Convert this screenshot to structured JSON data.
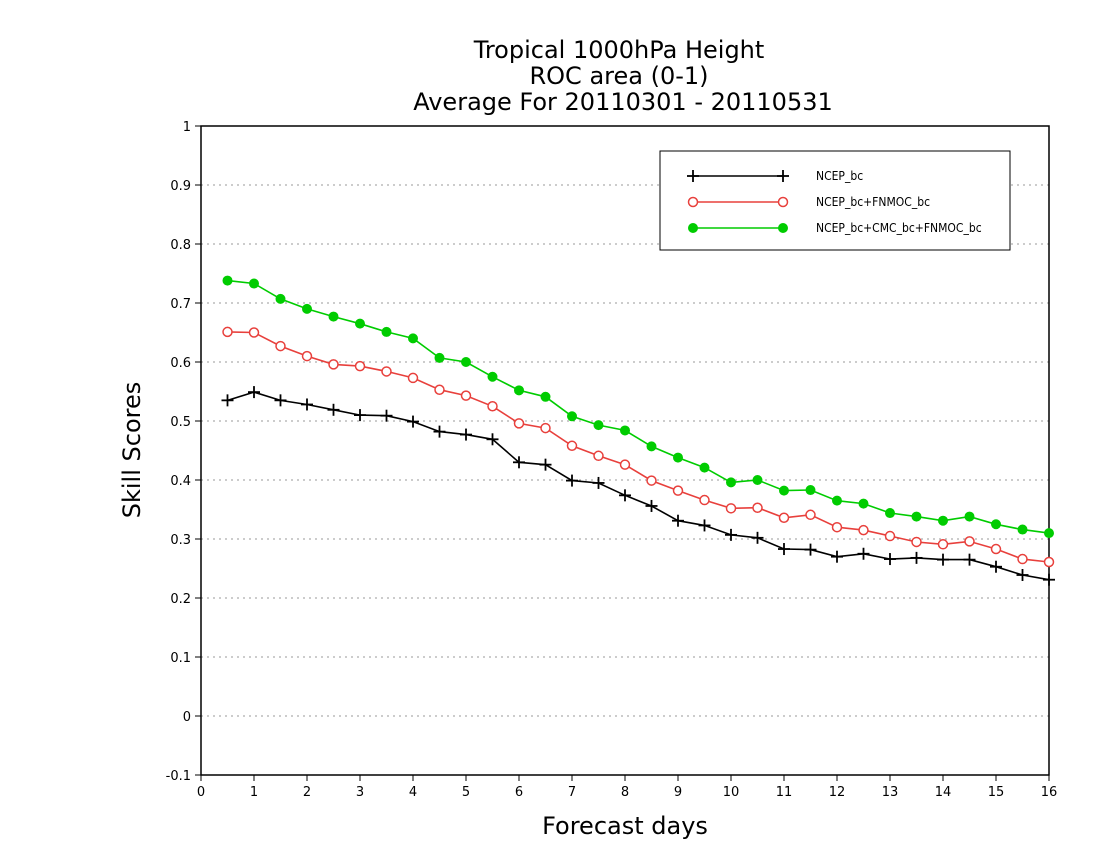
{
  "chart_data": {
    "type": "line",
    "title": [
      "Tropical 1000hPa Height",
      "ROC area (0-1)",
      "Average For 20110301 - 20110531"
    ],
    "xlabel": "Forecast days",
    "ylabel": "Skill Scores",
    "xlim": [
      0,
      16
    ],
    "ylim": [
      -0.1,
      1
    ],
    "xticks": [
      0,
      1,
      2,
      3,
      4,
      5,
      6,
      7,
      8,
      9,
      10,
      11,
      12,
      13,
      14,
      15,
      16
    ],
    "yticks": [
      "-0.1",
      "0",
      "0.1",
      "0.2",
      "0.3",
      "0.4",
      "0.5",
      "0.6",
      "0.7",
      "0.8",
      "0.9",
      "1"
    ],
    "grid": "horizontal dotted",
    "legend_position": "top-right",
    "x": [
      0.5,
      1,
      1.5,
      2,
      2.5,
      3,
      3.5,
      4,
      4.5,
      5,
      5.5,
      6,
      6.5,
      7,
      7.5,
      8,
      8.5,
      9,
      9.5,
      10,
      10.5,
      11,
      11.5,
      12,
      12.5,
      13,
      13.5,
      14,
      14.5,
      15,
      15.5,
      16
    ],
    "series": [
      {
        "name": "NCEP_bc",
        "color": "#000000",
        "marker": "plus",
        "values": [
          0.535,
          0.549,
          0.535,
          0.528,
          0.519,
          0.51,
          0.509,
          0.499,
          0.482,
          0.477,
          0.469,
          0.43,
          0.426,
          0.399,
          0.395,
          0.374,
          0.356,
          0.331,
          0.323,
          0.307,
          0.302,
          0.283,
          0.282,
          0.27,
          0.275,
          0.266,
          0.268,
          0.265,
          0.265,
          0.253,
          0.239,
          0.231
        ]
      },
      {
        "name": "NCEP_bc+FNMOC_bc",
        "color": "#e8403c",
        "marker": "open-circle",
        "values": [
          0.651,
          0.65,
          0.627,
          0.61,
          0.596,
          0.593,
          0.584,
          0.573,
          0.553,
          0.543,
          0.525,
          0.496,
          0.488,
          0.458,
          0.441,
          0.426,
          0.399,
          0.382,
          0.366,
          0.352,
          0.353,
          0.336,
          0.341,
          0.32,
          0.315,
          0.305,
          0.295,
          0.291,
          0.296,
          0.283,
          0.266,
          0.261
        ]
      },
      {
        "name": "NCEP_bc+CMC_bc+FNMOC_bc",
        "color": "#00cc00",
        "marker": "filled-circle",
        "values": [
          0.738,
          0.733,
          0.707,
          0.69,
          0.677,
          0.665,
          0.651,
          0.64,
          0.607,
          0.6,
          0.575,
          0.552,
          0.541,
          0.508,
          0.493,
          0.484,
          0.457,
          0.438,
          0.421,
          0.396,
          0.4,
          0.382,
          0.383,
          0.365,
          0.36,
          0.344,
          0.338,
          0.331,
          0.338,
          0.325,
          0.316,
          0.31
        ]
      }
    ]
  }
}
